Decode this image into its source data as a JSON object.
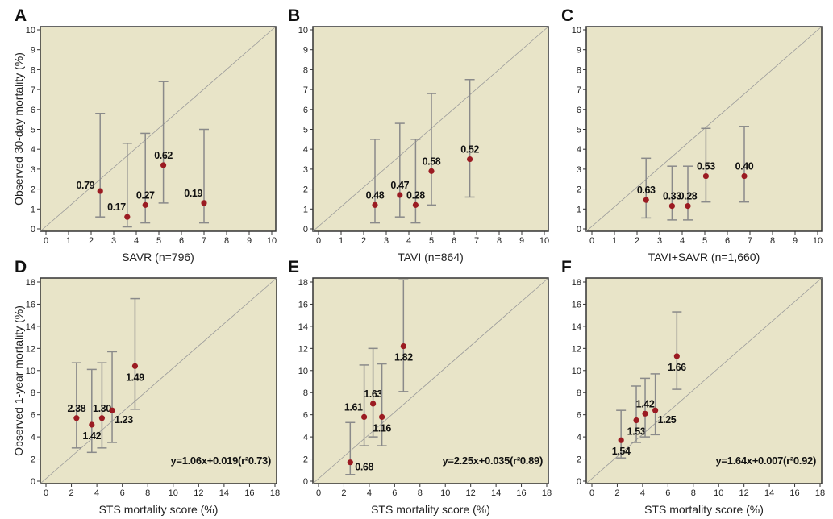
{
  "colors": {
    "plot_bg": "#e8e4c8",
    "point": "#9b1b22",
    "error_bar": "#8a8a8a",
    "diagonal": "#9a9a9a"
  },
  "chart_data": [
    {
      "panel": "A",
      "type": "scatter",
      "xlabel": "SAVR (n=796)",
      "ylabel": "Observed 30-day mortality (%)",
      "xlim": [
        0,
        10
      ],
      "ylim": [
        0,
        10
      ],
      "ticks": [
        0,
        1,
        2,
        3,
        4,
        5,
        6,
        7,
        8,
        9,
        10
      ],
      "reference_line": "y=x",
      "points": [
        {
          "x": 2.4,
          "y": 1.9,
          "ci": [
            0.6,
            5.8
          ],
          "label": "0.79",
          "label_pos": "left"
        },
        {
          "x": 3.6,
          "y": 0.6,
          "ci": [
            0.1,
            4.3
          ],
          "label": "0.17",
          "label_pos": "above-left"
        },
        {
          "x": 4.4,
          "y": 1.2,
          "ci": [
            0.3,
            4.8
          ],
          "label": "0.27",
          "label_pos": "above"
        },
        {
          "x": 5.2,
          "y": 3.2,
          "ci": [
            1.3,
            7.4
          ],
          "label": "0.62",
          "label_pos": "above"
        },
        {
          "x": 7.0,
          "y": 1.3,
          "ci": [
            0.3,
            5.0
          ],
          "label": "0.19",
          "label_pos": "above-left"
        }
      ]
    },
    {
      "panel": "B",
      "type": "scatter",
      "xlabel": "TAVI (n=864)",
      "ylabel": "",
      "xlim": [
        0,
        10
      ],
      "ylim": [
        0,
        10
      ],
      "ticks": [
        0,
        1,
        2,
        3,
        4,
        5,
        6,
        7,
        8,
        9,
        10
      ],
      "reference_line": "y=x",
      "points": [
        {
          "x": 2.5,
          "y": 1.2,
          "ci": [
            0.3,
            4.5
          ],
          "label": "0.48",
          "label_pos": "above"
        },
        {
          "x": 3.6,
          "y": 1.7,
          "ci": [
            0.6,
            5.3
          ],
          "label": "0.47",
          "label_pos": "above"
        },
        {
          "x": 4.3,
          "y": 1.2,
          "ci": [
            0.3,
            4.5
          ],
          "label": "0.28",
          "label_pos": "above"
        },
        {
          "x": 5.0,
          "y": 2.9,
          "ci": [
            1.2,
            6.8
          ],
          "label": "0.58",
          "label_pos": "above"
        },
        {
          "x": 6.7,
          "y": 3.5,
          "ci": [
            1.6,
            7.5
          ],
          "label": "0.52",
          "label_pos": "above"
        }
      ]
    },
    {
      "panel": "C",
      "type": "scatter",
      "xlabel": "TAVI+SAVR (n=1,660)",
      "ylabel": "",
      "xlim": [
        0,
        10
      ],
      "ylim": [
        0,
        10
      ],
      "ticks": [
        0,
        1,
        2,
        3,
        4,
        5,
        6,
        7,
        8,
        9,
        10
      ],
      "reference_line": "y=x",
      "points": [
        {
          "x": 2.4,
          "y": 1.45,
          "ci": [
            0.55,
            3.55
          ],
          "label": "0.63",
          "label_pos": "above"
        },
        {
          "x": 3.55,
          "y": 1.15,
          "ci": [
            0.45,
            3.15
          ],
          "label": "0.33",
          "label_pos": "above"
        },
        {
          "x": 4.25,
          "y": 1.15,
          "ci": [
            0.45,
            3.15
          ],
          "label": "0.28",
          "label_pos": "above"
        },
        {
          "x": 5.05,
          "y": 2.65,
          "ci": [
            1.35,
            5.05
          ],
          "label": "0.53",
          "label_pos": "above"
        },
        {
          "x": 6.75,
          "y": 2.65,
          "ci": [
            1.35,
            5.15
          ],
          "label": "0.40",
          "label_pos": "above"
        }
      ]
    },
    {
      "panel": "D",
      "type": "scatter",
      "xlabel": "STS mortality score (%)",
      "ylabel": "Observed 1-year mortality (%)",
      "xlim": [
        0,
        18
      ],
      "ylim": [
        0,
        18
      ],
      "ticks": [
        0,
        2,
        4,
        6,
        8,
        10,
        12,
        14,
        16,
        18
      ],
      "reference_line": "y=x",
      "equation": "y=1.06x+0.019(r²0.73)",
      "points": [
        {
          "x": 2.4,
          "y": 5.7,
          "ci": [
            3.0,
            10.7
          ],
          "label": "2.38",
          "label_pos": "above"
        },
        {
          "x": 3.6,
          "y": 5.1,
          "ci": [
            2.6,
            10.1
          ],
          "label": "1.42",
          "label_pos": "below"
        },
        {
          "x": 4.4,
          "y": 5.7,
          "ci": [
            3.0,
            10.7
          ],
          "label": "1.30",
          "label_pos": "above"
        },
        {
          "x": 5.2,
          "y": 6.4,
          "ci": [
            3.5,
            11.7
          ],
          "label": "1.23",
          "label_pos": "below-right"
        },
        {
          "x": 7.0,
          "y": 10.4,
          "ci": [
            6.5,
            16.5
          ],
          "label": "1.49",
          "label_pos": "below"
        }
      ]
    },
    {
      "panel": "E",
      "type": "scatter",
      "xlabel": "STS mortality score (%)",
      "ylabel": "",
      "xlim": [
        0,
        18
      ],
      "ylim": [
        0,
        18
      ],
      "ticks": [
        0,
        2,
        4,
        6,
        8,
        10,
        12,
        14,
        16,
        18
      ],
      "reference_line": "y=x",
      "equation": "y=2.25x+0.035(r²0.89)",
      "points": [
        {
          "x": 2.5,
          "y": 1.7,
          "ci": [
            0.6,
            5.3
          ],
          "label": "0.68",
          "label_pos": "right"
        },
        {
          "x": 3.6,
          "y": 5.8,
          "ci": [
            3.2,
            10.5
          ],
          "label": "1.61",
          "label_pos": "above-left"
        },
        {
          "x": 4.3,
          "y": 7.0,
          "ci": [
            4.0,
            12.0
          ],
          "label": "1.63",
          "label_pos": "above"
        },
        {
          "x": 5.0,
          "y": 5.8,
          "ci": [
            3.2,
            10.6
          ],
          "label": "1.16",
          "label_pos": "below"
        },
        {
          "x": 6.7,
          "y": 12.2,
          "ci": [
            8.1,
            18.2
          ],
          "label": "1.82",
          "label_pos": "below"
        }
      ]
    },
    {
      "panel": "F",
      "type": "scatter",
      "xlabel": "STS mortality score (%)",
      "ylabel": "",
      "xlim": [
        0,
        18
      ],
      "ylim": [
        0,
        18
      ],
      "ticks": [
        0,
        2,
        4,
        6,
        8,
        10,
        12,
        14,
        16,
        18
      ],
      "reference_line": "y=x",
      "equation": "y=1.64x+0.007(r²0.92)",
      "points": [
        {
          "x": 2.3,
          "y": 3.7,
          "ci": [
            2.1,
            6.4
          ],
          "label": "1.54",
          "label_pos": "below"
        },
        {
          "x": 3.5,
          "y": 5.5,
          "ci": [
            3.5,
            8.6
          ],
          "label": "1.53",
          "label_pos": "below"
        },
        {
          "x": 4.2,
          "y": 6.1,
          "ci": [
            4.0,
            9.3
          ],
          "label": "1.42",
          "label_pos": "above"
        },
        {
          "x": 5.0,
          "y": 6.4,
          "ci": [
            4.2,
            9.7
          ],
          "label": "1.25",
          "label_pos": "below-right"
        },
        {
          "x": 6.7,
          "y": 11.3,
          "ci": [
            8.3,
            15.3
          ],
          "label": "1.66",
          "label_pos": "below"
        }
      ]
    }
  ]
}
